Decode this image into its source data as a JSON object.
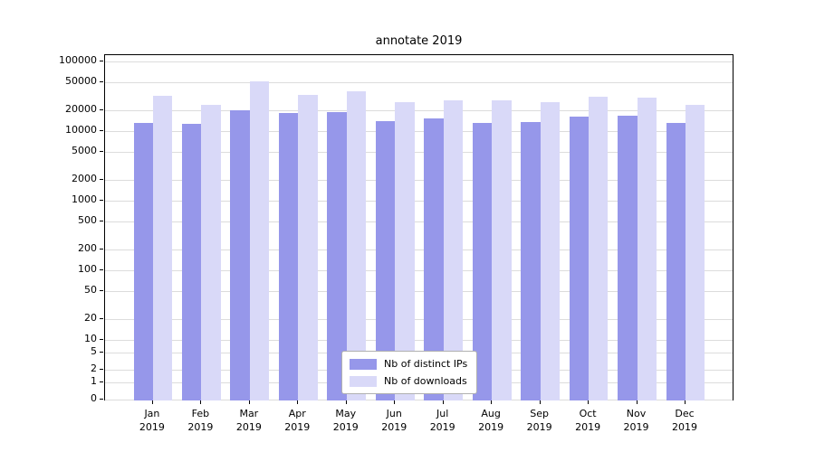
{
  "title": "annotate 2019",
  "chart_data": {
    "type": "bar",
    "title": "annotate 2019",
    "categories": [
      "Jan",
      "Feb",
      "Mar",
      "Apr",
      "May",
      "Jun",
      "Jul",
      "Aug",
      "Sep",
      "Oct",
      "Nov",
      "Dec"
    ],
    "category_year": "2019",
    "series": [
      {
        "name": "Nb of distinct IPs",
        "color": "#9697ea",
        "values": [
          13000,
          12800,
          20000,
          18000,
          18500,
          14000,
          15000,
          13200,
          13500,
          16000,
          16500,
          13200
        ]
      },
      {
        "name": "Nb of downloads",
        "color": "#d9d9f8",
        "values": [
          32000,
          24000,
          52000,
          33000,
          37000,
          26000,
          28000,
          27500,
          26000,
          31000,
          30000,
          24000
        ]
      }
    ],
    "yscale": "symlog",
    "yticks": [
      0,
      1,
      2,
      5,
      10,
      20,
      50,
      100,
      200,
      500,
      1000,
      2000,
      5000,
      10000,
      20000,
      50000,
      100000
    ],
    "ylim": [
      0,
      100000
    ],
    "grid": true,
    "legend_position": "lower center",
    "grid_color": "#dcdcdc",
    "axis_color": "#000000",
    "background_color": "#ffffff"
  }
}
